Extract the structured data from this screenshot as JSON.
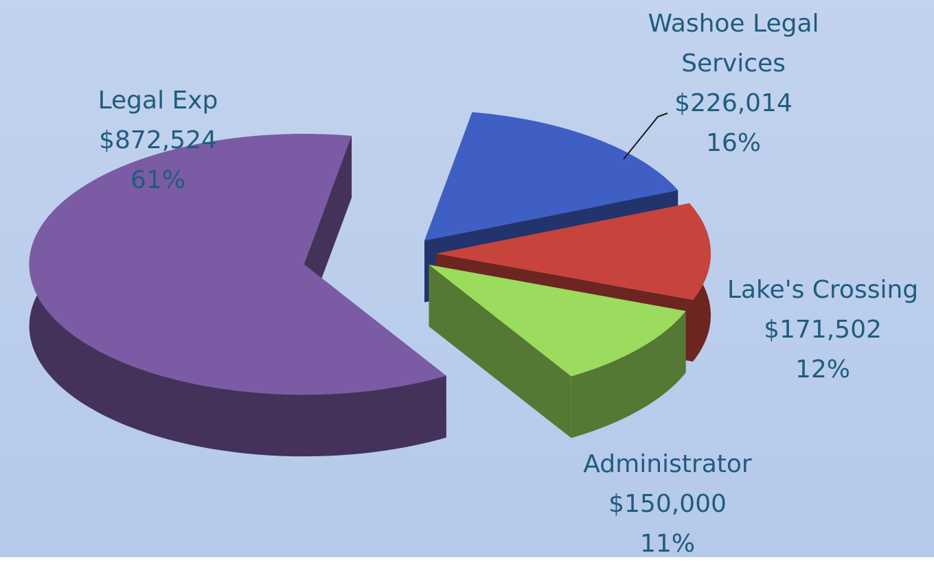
{
  "chart_data": {
    "type": "pie",
    "categories": [
      "Washoe Legal Services",
      "Lake's Crossing",
      "Administrator",
      "Legal Exp"
    ],
    "values": [
      226014,
      171502,
      150000,
      872524
    ],
    "value_labels": [
      "$226,014",
      "$171,502",
      "$150,000",
      "$872,524"
    ],
    "percent_labels": [
      "16%",
      "12%",
      "11%",
      "61%"
    ],
    "colors": [
      "#3f5fc4",
      "#c6443c",
      "#9bdb5e",
      "#7b5ba4"
    ]
  }
}
